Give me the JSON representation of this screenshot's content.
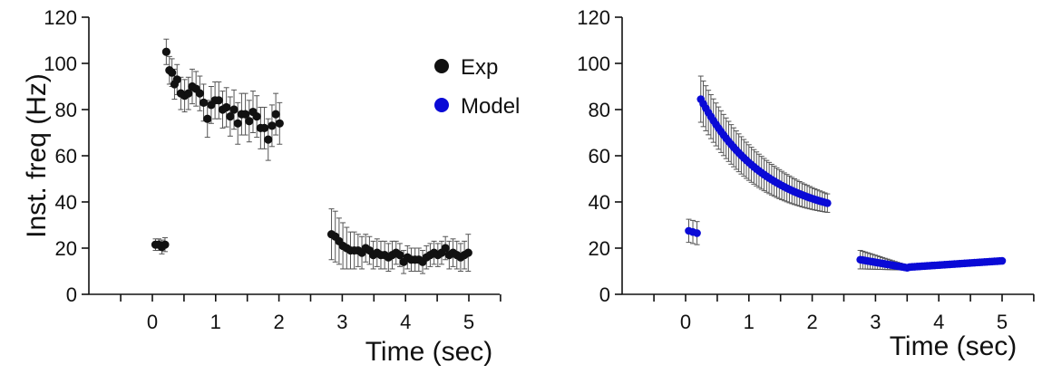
{
  "chart_data": [
    {
      "type": "scatter",
      "ylabel": "Inst. freq (Hz)",
      "xlabel": "Time (sec)",
      "xlim": [
        -0.5,
        5.5
      ],
      "ylim": [
        0,
        120
      ],
      "xticks": [
        "0",
        "1",
        "2",
        "3",
        "4",
        "5"
      ],
      "yticks": [
        "0",
        "20",
        "40",
        "60",
        "80",
        "100",
        "120"
      ],
      "legend": {
        "placement": "top-right",
        "entries": [
          {
            "label": "Exp",
            "color": "#111111"
          },
          {
            "label": "Model",
            "color": "#0a0ad6"
          }
        ]
      },
      "series": [
        {
          "name": "Exp",
          "color": "#111111",
          "points": [
            {
              "x": 0.05,
              "y": 21.5,
              "err": 2.5
            },
            {
              "x": 0.1,
              "y": 21.5,
              "err": 2.5
            },
            {
              "x": 0.15,
              "y": 20.5,
              "err": 3
            },
            {
              "x": 0.2,
              "y": 21.5,
              "err": 3
            },
            {
              "x": 0.22,
              "y": 105,
              "err": 5.5
            },
            {
              "x": 0.27,
              "y": 97,
              "err": 6
            },
            {
              "x": 0.31,
              "y": 96,
              "err": 6
            },
            {
              "x": 0.35,
              "y": 91,
              "err": 6.5
            },
            {
              "x": 0.39,
              "y": 93,
              "err": 6.5
            },
            {
              "x": 0.45,
              "y": 87,
              "err": 7
            },
            {
              "x": 0.51,
              "y": 86,
              "err": 7
            },
            {
              "x": 0.57,
              "y": 87,
              "err": 7
            },
            {
              "x": 0.63,
              "y": 90,
              "err": 7.5
            },
            {
              "x": 0.69,
              "y": 89,
              "err": 7.5
            },
            {
              "x": 0.75,
              "y": 87,
              "err": 7.5
            },
            {
              "x": 0.81,
              "y": 83,
              "err": 8
            },
            {
              "x": 0.87,
              "y": 76,
              "err": 8
            },
            {
              "x": 0.93,
              "y": 82,
              "err": 8
            },
            {
              "x": 0.99,
              "y": 84,
              "err": 8
            },
            {
              "x": 1.05,
              "y": 84,
              "err": 8
            },
            {
              "x": 1.11,
              "y": 80,
              "err": 8
            },
            {
              "x": 1.17,
              "y": 81,
              "err": 8.5
            },
            {
              "x": 1.23,
              "y": 77,
              "err": 8.5
            },
            {
              "x": 1.29,
              "y": 80,
              "err": 8.5
            },
            {
              "x": 1.35,
              "y": 74,
              "err": 9
            },
            {
              "x": 1.41,
              "y": 78,
              "err": 9
            },
            {
              "x": 1.47,
              "y": 78,
              "err": 9
            },
            {
              "x": 1.53,
              "y": 75,
              "err": 9
            },
            {
              "x": 1.59,
              "y": 79,
              "err": 9
            },
            {
              "x": 1.65,
              "y": 77,
              "err": 9
            },
            {
              "x": 1.71,
              "y": 72,
              "err": 9
            },
            {
              "x": 1.77,
              "y": 72,
              "err": 9
            },
            {
              "x": 1.83,
              "y": 67,
              "err": 9
            },
            {
              "x": 1.89,
              "y": 73,
              "err": 9
            },
            {
              "x": 1.95,
              "y": 78,
              "err": 9
            },
            {
              "x": 2.01,
              "y": 74,
              "err": 9
            },
            {
              "x": 2.83,
              "y": 26,
              "err": 11
            },
            {
              "x": 2.89,
              "y": 25,
              "err": 11
            },
            {
              "x": 2.95,
              "y": 23,
              "err": 10
            },
            {
              "x": 3.01,
              "y": 21,
              "err": 10
            },
            {
              "x": 3.07,
              "y": 20,
              "err": 9
            },
            {
              "x": 3.13,
              "y": 19,
              "err": 8
            },
            {
              "x": 3.19,
              "y": 19,
              "err": 8
            },
            {
              "x": 3.25,
              "y": 19,
              "err": 7
            },
            {
              "x": 3.31,
              "y": 18,
              "err": 7
            },
            {
              "x": 3.37,
              "y": 20,
              "err": 6
            },
            {
              "x": 3.43,
              "y": 19,
              "err": 6
            },
            {
              "x": 3.49,
              "y": 17,
              "err": 6
            },
            {
              "x": 3.55,
              "y": 18,
              "err": 6
            },
            {
              "x": 3.61,
              "y": 17,
              "err": 6
            },
            {
              "x": 3.67,
              "y": 17,
              "err": 6
            },
            {
              "x": 3.73,
              "y": 16,
              "err": 6
            },
            {
              "x": 3.79,
              "y": 17,
              "err": 6
            },
            {
              "x": 3.85,
              "y": 18,
              "err": 5
            },
            {
              "x": 3.91,
              "y": 17,
              "err": 5
            },
            {
              "x": 3.97,
              "y": 14,
              "err": 5
            },
            {
              "x": 4.03,
              "y": 16,
              "err": 5
            },
            {
              "x": 4.09,
              "y": 15,
              "err": 5
            },
            {
              "x": 4.15,
              "y": 15,
              "err": 5
            },
            {
              "x": 4.21,
              "y": 15,
              "err": 5
            },
            {
              "x": 4.27,
              "y": 14,
              "err": 5
            },
            {
              "x": 4.33,
              "y": 16,
              "err": 5
            },
            {
              "x": 4.39,
              "y": 17,
              "err": 5
            },
            {
              "x": 4.45,
              "y": 18,
              "err": 5
            },
            {
              "x": 4.51,
              "y": 17,
              "err": 5
            },
            {
              "x": 4.57,
              "y": 18,
              "err": 5
            },
            {
              "x": 4.63,
              "y": 20,
              "err": 5
            },
            {
              "x": 4.69,
              "y": 17,
              "err": 6
            },
            {
              "x": 4.75,
              "y": 18,
              "err": 6
            },
            {
              "x": 4.81,
              "y": 17,
              "err": 6
            },
            {
              "x": 4.87,
              "y": 16,
              "err": 6
            },
            {
              "x": 4.93,
              "y": 17,
              "err": 6
            },
            {
              "x": 4.99,
              "y": 18,
              "err": 8
            }
          ]
        }
      ]
    },
    {
      "type": "scatter",
      "ylabel": "",
      "xlabel": "Time (sec)",
      "xlim": [
        -0.5,
        5.5
      ],
      "ylim": [
        0,
        120
      ],
      "xticks": [
        "0",
        "1",
        "2",
        "3",
        "4",
        "5"
      ],
      "yticks": [
        "0",
        "20",
        "40",
        "60",
        "80",
        "100",
        "120"
      ],
      "series": [
        {
          "name": "Model",
          "color": "#0a0ad6",
          "segments": [
            {
              "x_start": 0.05,
              "x_end": 0.18,
              "step": 0.065,
              "y_start": 27.5,
              "y_end": 26.5,
              "err_start": 5,
              "err_end": 5,
              "shape": "linear"
            },
            {
              "x_start": 0.24,
              "x_end": 2.24,
              "step": 0.04,
              "y_start": 84.5,
              "y_end": 39.5,
              "y_inf": 32,
              "tau": 0.9,
              "err_start": 10,
              "err_end": 4,
              "shape": "exp"
            },
            {
              "x_start": 2.76,
              "x_end": 3.5,
              "step": 0.04,
              "y_start": 15,
              "y_end": 11.5,
              "err_start": 4,
              "err_end": 1,
              "shape": "linear"
            },
            {
              "x_start": 3.54,
              "x_end": 5.0,
              "step": 0.04,
              "y_start": 11.8,
              "y_end": 14.5,
              "err_start": 0.8,
              "err_end": 0.5,
              "shape": "linear"
            }
          ]
        }
      ]
    }
  ]
}
